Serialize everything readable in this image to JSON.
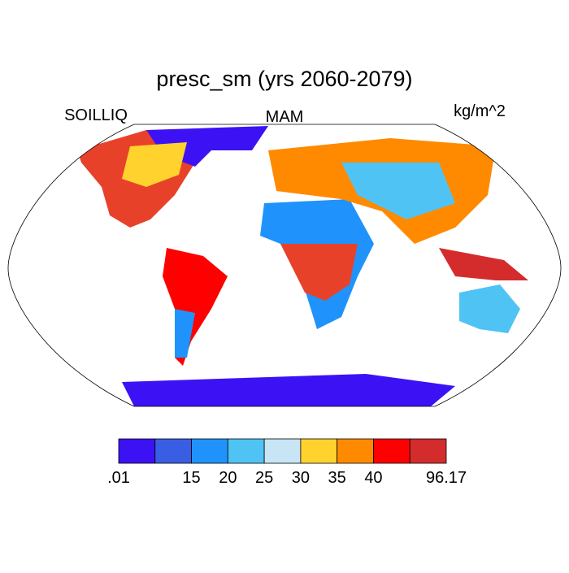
{
  "header": {
    "title": "presc_sm (yrs 2060-2079)",
    "left": "SOILLIQ",
    "center": "MAM",
    "right": "kg/m^2"
  },
  "colorbar": {
    "colors": [
      "#3c12f5",
      "#3a5ee3",
      "#1f93fb",
      "#50c3f5",
      "#c8e5f6",
      "#ffd22e",
      "#ff8a00",
      "#ff0000",
      "#d42c2c"
    ],
    "labels": [
      ".01",
      null,
      "15",
      "20",
      "25",
      "30",
      "35",
      "40",
      null,
      "96.17"
    ]
  }
}
